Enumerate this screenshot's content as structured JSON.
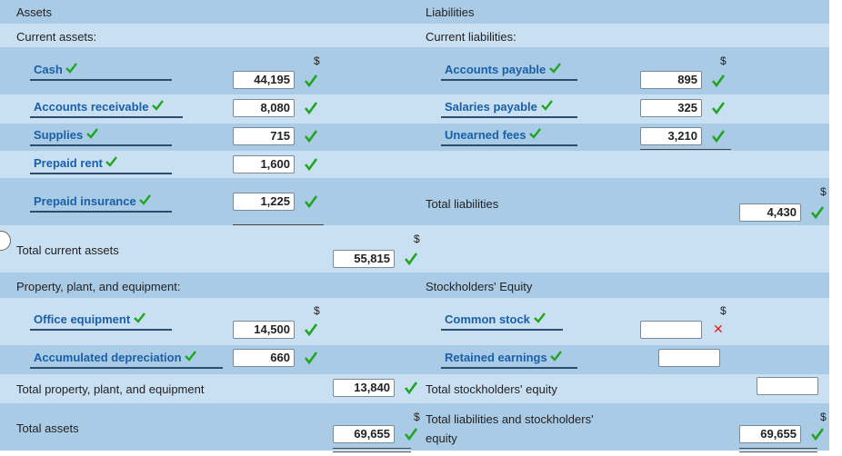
{
  "headers": {
    "assets": "Assets",
    "liabilities": "Liabilities"
  },
  "sections": {
    "current_assets": "Current assets:",
    "current_liabilities": "Current liabilities:",
    "ppe": "Property, plant, and equipment:",
    "equity": "Stockholders' Equity"
  },
  "currency": "$",
  "left": {
    "cash": {
      "label": "Cash",
      "value": "44,195"
    },
    "ar": {
      "label": "Accounts receivable",
      "value": "8,080"
    },
    "supplies": {
      "label": "Supplies",
      "value": "715"
    },
    "prepaid_rent": {
      "label": "Prepaid rent",
      "value": "1,600"
    },
    "prepaid_insurance": {
      "label": "Prepaid insurance",
      "value": "1,225"
    },
    "total_current": {
      "label": "Total current assets",
      "value": "55,815"
    },
    "office_equipment": {
      "label": "Office equipment",
      "value": "14,500"
    },
    "accum_dep": {
      "label": "Accumulated depreciation",
      "value": "660"
    },
    "total_ppe": {
      "label": "Total property, plant, and equipment",
      "value": "13,840"
    },
    "total_assets": {
      "label": "Total assets",
      "value": "69,655"
    }
  },
  "right": {
    "accounts_payable": {
      "label": "Accounts payable",
      "value": "895"
    },
    "salaries_payable": {
      "label": "Salaries payable",
      "value": "325"
    },
    "unearned_fees": {
      "label": "Unearned fees",
      "value": "3,210"
    },
    "total_liabilities": {
      "label": "Total liabilities",
      "value": "4,430"
    },
    "common_stock": {
      "label": "Common stock",
      "value": ""
    },
    "retained_earnings": {
      "label": "Retained earnings",
      "value": ""
    },
    "total_equity": {
      "label": "Total stockholders' equity",
      "value": ""
    },
    "total_le": {
      "label_line1": "Total liabilities and stockholders'",
      "label_line2": "equity",
      "value": "69,655"
    }
  },
  "colors": {
    "correct": "#1fa51f",
    "incorrect": "#e02020",
    "row_dark": "#a9cbe6",
    "row_light": "#c9dff2"
  }
}
